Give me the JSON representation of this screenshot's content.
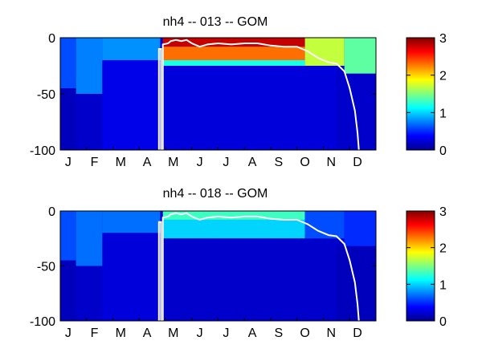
{
  "chart_data": [
    {
      "type": "heatmap",
      "title": "nh4 -- 013 -- GOM",
      "xlabel": "",
      "ylabel": "",
      "month_labels": [
        "J",
        "F",
        "M",
        "A",
        "M",
        "J",
        "J",
        "A",
        "S",
        "O",
        "N",
        "D"
      ],
      "y_ticks": [
        "0",
        "-50",
        "-100"
      ],
      "ylim": [
        -100,
        0
      ],
      "xlim_months": [
        0,
        12
      ],
      "colorbar": {
        "ticks": [
          "0",
          "1",
          "2",
          "3"
        ],
        "range": [
          0,
          3
        ],
        "colormap": "jet"
      },
      "mixed_layer_line": {
        "color": "#ffffff",
        "points": [
          [
            3.75,
            -100
          ],
          [
            3.75,
            -10
          ],
          [
            3.83,
            -10
          ],
          [
            3.83,
            -100
          ],
          [
            3.9,
            -100
          ],
          [
            3.9,
            -6
          ],
          [
            4.1,
            -5
          ],
          [
            4.2,
            -3
          ],
          [
            4.4,
            -2
          ],
          [
            4.6,
            -3
          ],
          [
            4.8,
            -2
          ],
          [
            5.0,
            -5
          ],
          [
            5.3,
            -8
          ],
          [
            5.6,
            -6
          ],
          [
            6.0,
            -5
          ],
          [
            6.5,
            -6
          ],
          [
            7.0,
            -5
          ],
          [
            7.5,
            -5
          ],
          [
            8.0,
            -7
          ],
          [
            8.5,
            -8
          ],
          [
            9.0,
            -8
          ],
          [
            9.4,
            -12
          ],
          [
            9.8,
            -18
          ],
          [
            10.2,
            -22
          ],
          [
            10.5,
            -23
          ],
          [
            10.8,
            -30
          ],
          [
            11.0,
            -45
          ],
          [
            11.2,
            -65
          ],
          [
            11.3,
            -85
          ],
          [
            11.35,
            -100
          ]
        ]
      },
      "regions": [
        {
          "months": [
            0,
            0.6
          ],
          "depth": [
            0,
            -45
          ],
          "value": 0.6
        },
        {
          "months": [
            0,
            0.6
          ],
          "depth": [
            -45,
            -100
          ],
          "value": 0.15
        },
        {
          "months": [
            0.6,
            1.6
          ],
          "depth": [
            0,
            -50
          ],
          "value": 0.75
        },
        {
          "months": [
            0.6,
            1.6
          ],
          "depth": [
            -50,
            -100
          ],
          "value": 0.2
        },
        {
          "months": [
            1.6,
            3.8
          ],
          "depth": [
            0,
            -20
          ],
          "value": 0.8
        },
        {
          "months": [
            1.6,
            3.8
          ],
          "depth": [
            -20,
            -100
          ],
          "value": 0.3
        },
        {
          "months": [
            3.9,
            9.3
          ],
          "depth": [
            0,
            -8
          ],
          "value": 2.8
        },
        {
          "months": [
            3.9,
            9.3
          ],
          "depth": [
            -8,
            -20
          ],
          "value": 2.3
        },
        {
          "months": [
            3.9,
            9.3
          ],
          "depth": [
            -20,
            -25
          ],
          "value": 1.2
        },
        {
          "months": [
            3.9,
            10.5
          ],
          "depth": [
            -25,
            -100
          ],
          "value": 0.25
        },
        {
          "months": [
            9.3,
            10.8
          ],
          "depth": [
            0,
            -25
          ],
          "value": 1.7
        },
        {
          "months": [
            10.8,
            12
          ],
          "depth": [
            0,
            -32
          ],
          "value": 1.4
        },
        {
          "months": [
            10.5,
            12
          ],
          "depth": [
            -32,
            -100
          ],
          "value": 0.2
        }
      ]
    },
    {
      "type": "heatmap",
      "title": "nh4 -- 018 -- GOM",
      "xlabel": "",
      "ylabel": "",
      "month_labels": [
        "J",
        "F",
        "M",
        "A",
        "M",
        "J",
        "J",
        "A",
        "S",
        "O",
        "N",
        "D"
      ],
      "y_ticks": [
        "0",
        "-50",
        "-100"
      ],
      "ylim": [
        -100,
        0
      ],
      "xlim_months": [
        0,
        12
      ],
      "colorbar": {
        "ticks": [
          "0",
          "1",
          "2",
          "3"
        ],
        "range": [
          0,
          3
        ],
        "colormap": "jet"
      },
      "mixed_layer_line": {
        "color": "#ffffff",
        "points": [
          [
            3.75,
            -100
          ],
          [
            3.75,
            -10
          ],
          [
            3.83,
            -10
          ],
          [
            3.83,
            -100
          ],
          [
            3.9,
            -100
          ],
          [
            3.9,
            -6
          ],
          [
            4.1,
            -5
          ],
          [
            4.2,
            -3
          ],
          [
            4.4,
            -2
          ],
          [
            4.6,
            -3
          ],
          [
            4.8,
            -2
          ],
          [
            5.0,
            -5
          ],
          [
            5.3,
            -8
          ],
          [
            5.6,
            -6
          ],
          [
            6.0,
            -5
          ],
          [
            6.5,
            -6
          ],
          [
            7.0,
            -5
          ],
          [
            7.5,
            -5
          ],
          [
            8.0,
            -7
          ],
          [
            8.5,
            -8
          ],
          [
            9.0,
            -8
          ],
          [
            9.4,
            -12
          ],
          [
            9.8,
            -18
          ],
          [
            10.2,
            -22
          ],
          [
            10.5,
            -23
          ],
          [
            10.8,
            -30
          ],
          [
            11.0,
            -45
          ],
          [
            11.2,
            -65
          ],
          [
            11.3,
            -85
          ],
          [
            11.35,
            -100
          ]
        ]
      },
      "regions": [
        {
          "months": [
            0,
            0.6
          ],
          "depth": [
            0,
            -45
          ],
          "value": 0.6
        },
        {
          "months": [
            0,
            0.6
          ],
          "depth": [
            -45,
            -100
          ],
          "value": 0.15
        },
        {
          "months": [
            0.6,
            1.6
          ],
          "depth": [
            0,
            -50
          ],
          "value": 0.7
        },
        {
          "months": [
            0.6,
            1.6
          ],
          "depth": [
            -50,
            -100
          ],
          "value": 0.2
        },
        {
          "months": [
            1.6,
            3.8
          ],
          "depth": [
            0,
            -20
          ],
          "value": 0.7
        },
        {
          "months": [
            1.6,
            3.8
          ],
          "depth": [
            -20,
            -100
          ],
          "value": 0.25
        },
        {
          "months": [
            3.9,
            9.3
          ],
          "depth": [
            0,
            -8
          ],
          "value": 1.3
        },
        {
          "months": [
            3.9,
            9.3
          ],
          "depth": [
            -8,
            -25
          ],
          "value": 1.0
        },
        {
          "months": [
            3.9,
            10.5
          ],
          "depth": [
            -25,
            -100
          ],
          "value": 0.2
        },
        {
          "months": [
            9.3,
            10.8
          ],
          "depth": [
            0,
            -25
          ],
          "value": 0.6
        },
        {
          "months": [
            10.8,
            12
          ],
          "depth": [
            0,
            -32
          ],
          "value": 0.5
        },
        {
          "months": [
            10.5,
            12
          ],
          "depth": [
            -32,
            -100
          ],
          "value": 0.15
        }
      ]
    }
  ]
}
